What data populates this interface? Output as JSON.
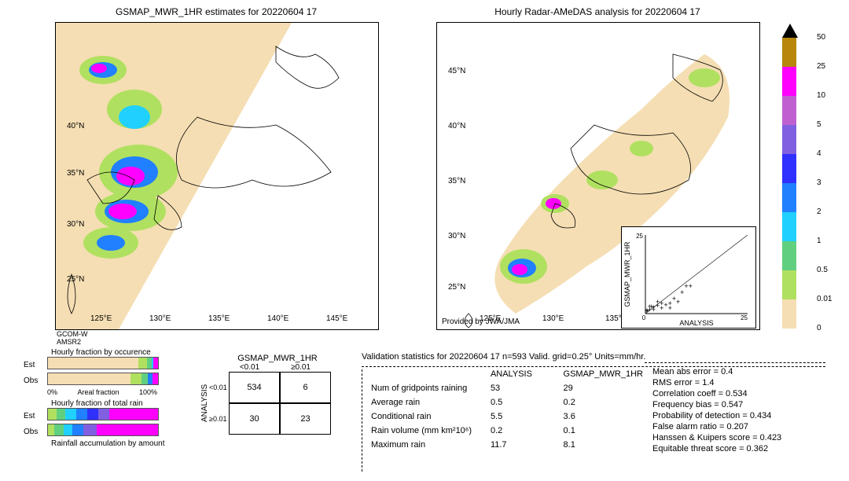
{
  "map_left": {
    "title": "GSMAP_MWR_1HR estimates for 20220604 17",
    "lat_labels": [
      "25°N",
      "30°N",
      "35°N",
      "40°N"
    ],
    "lon_labels": [
      "125°E",
      "130°E",
      "135°E",
      "140°E",
      "145°E"
    ],
    "sensor_label": "GCOM-W\nAMSR2"
  },
  "map_right": {
    "title": "Hourly Radar-AMeDAS analysis for 20220604 17",
    "lat_labels": [
      "25°N",
      "30°N",
      "35°N",
      "40°N",
      "45°N"
    ],
    "lon_labels": [
      "125°E",
      "130°E",
      "135°E"
    ],
    "provider": "Provided by JWA/JMA"
  },
  "colorbar": {
    "ticks": [
      "50",
      "25",
      "10",
      "5",
      "4",
      "3",
      "2",
      "1",
      "0.5",
      "0.01",
      "0"
    ],
    "colors": [
      "#b8860b",
      "#ff00ff",
      "#c060d0",
      "#8060e0",
      "#3030ff",
      "#2080ff",
      "#20d0ff",
      "#60d080",
      "#b0e060",
      "#f5deb3"
    ]
  },
  "inset_scatter": {
    "xlabel": "ANALYSIS",
    "ylabel": "GSMAP_MWR_1HR",
    "limits": [
      0,
      25
    ],
    "ticks": [
      0,
      5,
      10,
      15,
      20,
      25
    ],
    "points": [
      [
        0.3,
        0.2
      ],
      [
        0.5,
        0.1
      ],
      [
        1,
        0.5
      ],
      [
        2,
        1.2
      ],
      [
        1.5,
        1.5
      ],
      [
        3,
        1.8
      ],
      [
        4,
        1
      ],
      [
        5,
        2
      ],
      [
        6,
        2.5
      ],
      [
        8,
        3
      ],
      [
        10,
        8
      ],
      [
        6,
        1
      ],
      [
        3,
        3
      ],
      [
        1,
        1.5
      ],
      [
        2,
        0.5
      ],
      [
        4,
        2.5
      ],
      [
        7,
        4
      ],
      [
        9,
        6
      ],
      [
        11,
        8
      ]
    ]
  },
  "contingency": {
    "header": "GSMAP_MWR_1HR",
    "row_header": "ANALYSIS",
    "col_labels": [
      "<0.01",
      "≥0.01"
    ],
    "row_labels": [
      "<0.01",
      "≥0.01"
    ],
    "values": [
      [
        534,
        6
      ],
      [
        30,
        23
      ]
    ]
  },
  "validation": {
    "header": "Validation statistics for 20220604 17  n=593 Valid. grid=0.25°  Units=mm/hr.",
    "col1": "ANALYSIS",
    "col2": "GSMAP_MWR_1HR",
    "rows": [
      {
        "label": "Num of gridpoints raining",
        "v1": "53",
        "v2": "29"
      },
      {
        "label": "Average rain",
        "v1": "0.5",
        "v2": "0.2"
      },
      {
        "label": "Conditional rain",
        "v1": "5.5",
        "v2": "3.6"
      },
      {
        "label": "Rain volume (mm km²10⁶)",
        "v1": "0.2",
        "v2": "0.1"
      },
      {
        "label": "Maximum rain",
        "v1": "11.7",
        "v2": "8.1"
      }
    ],
    "metrics": [
      {
        "label": "Mean abs error =",
        "value": "  0.4"
      },
      {
        "label": "RMS error =",
        "value": "  1.4"
      },
      {
        "label": "Correlation coeff =",
        "value": " 0.534"
      },
      {
        "label": "Frequency bias =",
        "value": " 0.547"
      },
      {
        "label": "Probability of detection =",
        "value": " 0.434"
      },
      {
        "label": "False alarm ratio =",
        "value": " 0.207"
      },
      {
        "label": "Hanssen & Kuipers score =",
        "value": " 0.423"
      },
      {
        "label": "Equitable threat score =",
        "value": " 0.362"
      }
    ]
  },
  "bars": {
    "occur_title": "Hourly fraction by occurence",
    "rain_title": "Hourly fraction of total rain",
    "footer": "Rainfall accumulation by amount",
    "est": "Est",
    "obs": "Obs",
    "x0": "0%",
    "x1": "100%",
    "xlabel": "Areal fraction",
    "occur_est": [
      {
        "c": "#f5deb3",
        "w": 82
      },
      {
        "c": "#b0e060",
        "w": 8
      },
      {
        "c": "#60d080",
        "w": 4
      },
      {
        "c": "#20d0ff",
        "w": 2
      },
      {
        "c": "#ff00ff",
        "w": 4
      }
    ],
    "occur_obs": [
      {
        "c": "#f5deb3",
        "w": 75
      },
      {
        "c": "#b0e060",
        "w": 10
      },
      {
        "c": "#60d080",
        "w": 6
      },
      {
        "c": "#2080ff",
        "w": 4
      },
      {
        "c": "#ff00ff",
        "w": 5
      }
    ],
    "rain_est": [
      {
        "c": "#b0e060",
        "w": 8
      },
      {
        "c": "#60d080",
        "w": 8
      },
      {
        "c": "#20d0ff",
        "w": 10
      },
      {
        "c": "#2080ff",
        "w": 10
      },
      {
        "c": "#3030ff",
        "w": 10
      },
      {
        "c": "#8060e0",
        "w": 10
      },
      {
        "c": "#ff00ff",
        "w": 44
      }
    ],
    "rain_obs": [
      {
        "c": "#b0e060",
        "w": 6
      },
      {
        "c": "#60d080",
        "w": 8
      },
      {
        "c": "#20d0ff",
        "w": 8
      },
      {
        "c": "#2080ff",
        "w": 10
      },
      {
        "c": "#8060e0",
        "w": 12
      },
      {
        "c": "#ff00ff",
        "w": 56
      }
    ]
  }
}
